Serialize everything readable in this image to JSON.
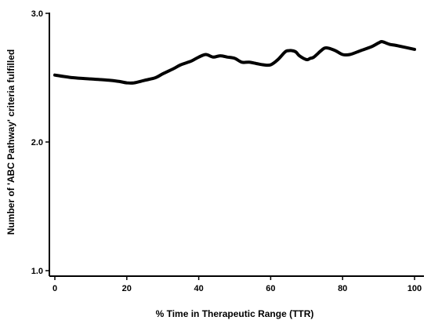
{
  "chart_data": {
    "type": "line",
    "xlabel": "% Time in Therapeutic Range (TTR)",
    "ylabel": "Number of 'ABC Pathway' criteria fulfilled",
    "xlim": [
      0,
      100
    ],
    "ylim": [
      1.0,
      3.0
    ],
    "x_ticks": [
      "0",
      "20",
      "40",
      "60",
      "80",
      "100"
    ],
    "y_ticks": [
      "1.0",
      "2.0",
      "3.0"
    ],
    "grid": false,
    "series": [
      {
        "x": [
          0,
          5,
          10,
          15,
          18,
          20,
          22,
          25,
          28,
          30,
          33,
          35,
          38,
          40,
          42,
          44,
          46,
          48,
          50,
          52,
          54,
          56,
          58,
          60,
          62,
          64,
          65,
          66,
          67,
          68,
          70,
          71,
          72,
          74,
          75,
          76,
          78,
          80,
          82,
          85,
          88,
          90,
          91,
          93,
          95,
          100
        ],
        "y": [
          2.52,
          2.5,
          2.49,
          2.48,
          2.47,
          2.46,
          2.46,
          2.48,
          2.5,
          2.53,
          2.57,
          2.6,
          2.63,
          2.66,
          2.68,
          2.66,
          2.67,
          2.66,
          2.65,
          2.62,
          2.62,
          2.61,
          2.6,
          2.6,
          2.64,
          2.7,
          2.71,
          2.71,
          2.7,
          2.67,
          2.64,
          2.65,
          2.66,
          2.71,
          2.73,
          2.73,
          2.71,
          2.68,
          2.68,
          2.71,
          2.74,
          2.77,
          2.78,
          2.76,
          2.75,
          2.72
        ]
      }
    ],
    "line_color": "#000000"
  }
}
